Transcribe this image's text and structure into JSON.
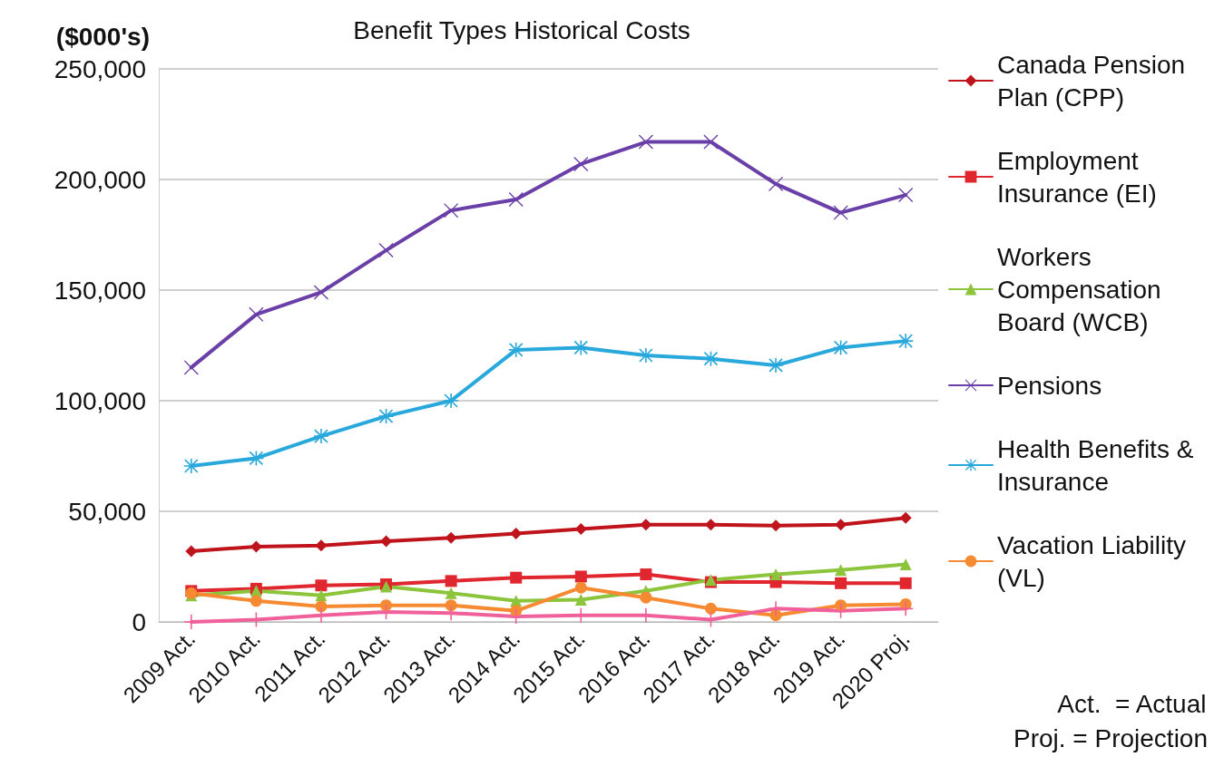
{
  "chart_data": {
    "type": "line",
    "title": "Benefit Types Historical Costs",
    "ylabel": "($000's)",
    "categories": [
      "2009 Act.",
      "2010 Act.",
      "2011 Act.",
      "2012 Act.",
      "2013 Act.",
      "2014 Act.",
      "2015 Act.",
      "2016 Act.",
      "2017 Act.",
      "2018 Act.",
      "2019 Act.",
      "2020 Proj."
    ],
    "ylim": [
      0,
      250000
    ],
    "yticks": [
      0,
      {
        "value": 50000,
        "label": "50,000"
      },
      {
        "value": 100000,
        "label": "100,000"
      },
      {
        "value": 150000,
        "label": "150,000"
      },
      {
        "value": 200000,
        "label": "200,000"
      },
      {
        "value": 250000,
        "label": "250,000"
      }
    ],
    "grid": "y",
    "legend": "right",
    "series": [
      {
        "name": "Canada Pension Plan (CPP)",
        "color": "#c0141c",
        "marker": "diamond",
        "values": [
          32000,
          34000,
          34500,
          36500,
          38000,
          40000,
          42000,
          44000,
          44000,
          43500,
          44000,
          47000
        ]
      },
      {
        "name": "Employment Insurance (EI)",
        "color": "#e0262e",
        "marker": "square",
        "values": [
          14000,
          15000,
          16500,
          17000,
          18500,
          20000,
          20500,
          21500,
          18000,
          18000,
          17500,
          17500
        ]
      },
      {
        "name": "Workers Compensation Board (WCB)",
        "color": "#8cc43c",
        "marker": "triangle",
        "values": [
          12000,
          14000,
          12000,
          16000,
          13000,
          9500,
          10000,
          14000,
          19000,
          21500,
          23500,
          26000
        ]
      },
      {
        "name": "Pensions",
        "color": "#6a3fa8",
        "marker": "cross",
        "values": [
          115000,
          139000,
          149000,
          168000,
          186000,
          191000,
          207000,
          217000,
          217000,
          198000,
          185000,
          193000
        ]
      },
      {
        "name": "Health Benefits & Insurance",
        "color": "#29a8dc",
        "marker": "star",
        "values": [
          70500,
          74000,
          84000,
          93000,
          100000,
          123000,
          124000,
          120500,
          119000,
          116000,
          124000,
          127000
        ]
      },
      {
        "name": "Vacation Liability (VL)",
        "color": "#f58a32",
        "marker": "circle",
        "values": [
          13000,
          9500,
          7000,
          7500,
          7500,
          5000,
          15500,
          11000,
          6000,
          3000,
          7500,
          8000
        ]
      },
      {
        "color": "#f0609a",
        "marker": "plus",
        "values": [
          0,
          1000,
          3000,
          4500,
          4000,
          2500,
          3000,
          3000,
          1000,
          6000,
          5000,
          6000
        ]
      }
    ],
    "annotations": [
      "Act.  = Actual",
      "Proj. = Projection"
    ]
  }
}
